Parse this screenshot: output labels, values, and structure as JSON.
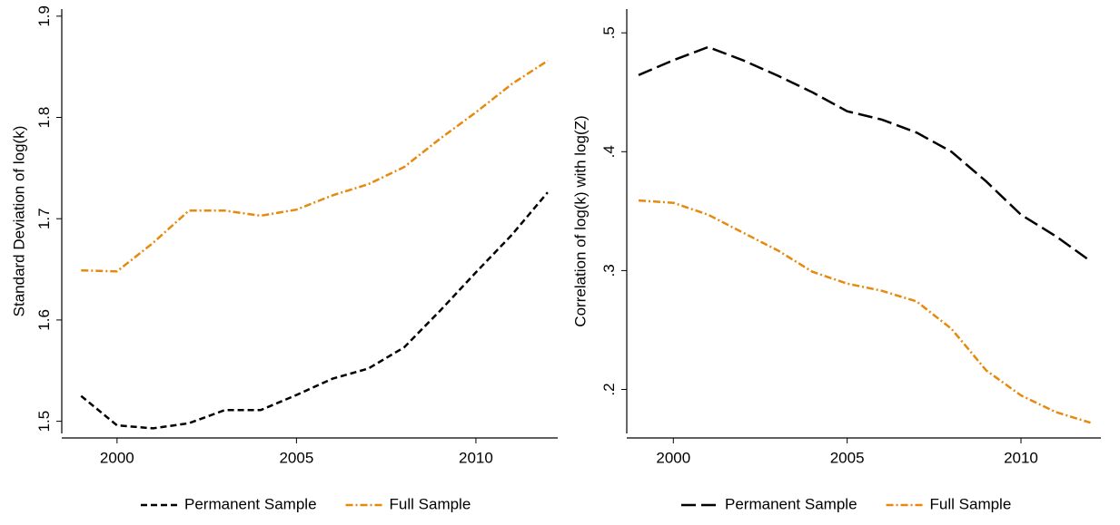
{
  "chart_data": [
    {
      "type": "line",
      "y_label": "Standard Deviation of log(k)",
      "x": [
        1999,
        2000,
        2001,
        2002,
        2003,
        2004,
        2005,
        2006,
        2007,
        2008,
        2009,
        2010,
        2011,
        2012
      ],
      "series": [
        {
          "name": "Permanent Sample",
          "color": "#000000",
          "linestyle": "dashed",
          "values": [
            1.525,
            1.496,
            1.493,
            1.498,
            1.511,
            1.511,
            1.526,
            1.542,
            1.552,
            1.573,
            1.609,
            1.647,
            1.684,
            1.726
          ]
        },
        {
          "name": "Full Sample",
          "color": "#e8890c",
          "linestyle": "dashdot",
          "values": [
            1.649,
            1.648,
            1.676,
            1.708,
            1.708,
            1.703,
            1.709,
            1.723,
            1.734,
            1.751,
            1.779,
            1.805,
            1.833,
            1.856
          ]
        }
      ],
      "xlim": [
        1998.46,
        2012.28
      ],
      "xticks": [
        2000,
        2005,
        2010
      ],
      "ylim": [
        1.488,
        1.907
      ],
      "yticks": [
        1.5,
        1.6,
        1.7,
        1.8,
        1.9
      ]
    },
    {
      "type": "line",
      "y_label": "Correlation of log(k) with log(Z)",
      "x": [
        1999,
        2000,
        2001,
        2002,
        2003,
        2004,
        2005,
        2006,
        2007,
        2008,
        2009,
        2010,
        2011,
        2012
      ],
      "series": [
        {
          "name": "Permanent Sample",
          "color": "#000000",
          "linestyle": "longdash",
          "values": [
            0.4645,
            0.477,
            0.488,
            0.477,
            0.464,
            0.45,
            0.434,
            0.427,
            0.416,
            0.4,
            0.375,
            0.347,
            0.329,
            0.308
          ]
        },
        {
          "name": "Full Sample",
          "color": "#e8890c",
          "linestyle": "dashdot",
          "values": [
            0.359,
            0.357,
            0.347,
            0.332,
            0.317,
            0.299,
            0.289,
            0.283,
            0.274,
            0.251,
            0.216,
            0.195,
            0.181,
            0.172
          ]
        }
      ],
      "xlim": [
        1998.66,
        2012.3
      ],
      "xticks": [
        2000,
        2005,
        2010
      ],
      "ylim": [
        0.163,
        0.52
      ],
      "yticks": [
        {
          "value": 0.2,
          "label": ".2"
        },
        {
          "value": 0.3,
          "label": ".3"
        },
        {
          "value": 0.4,
          "label": ".4"
        },
        {
          "value": 0.5,
          "label": ".5"
        }
      ]
    }
  ]
}
